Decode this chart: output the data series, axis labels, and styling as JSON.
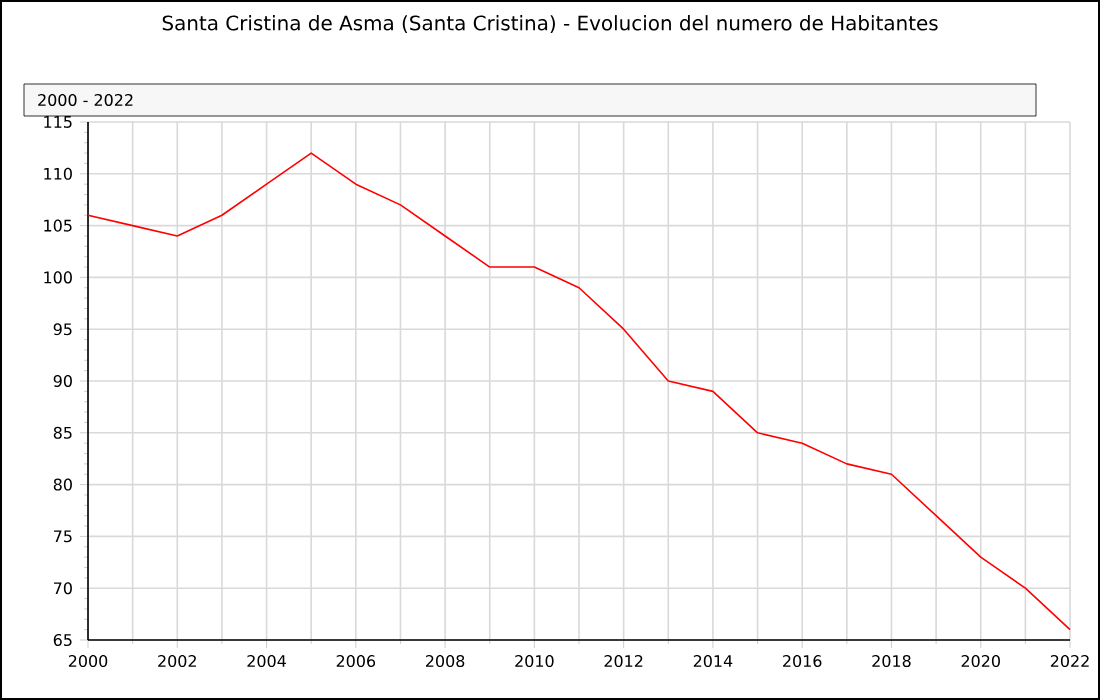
{
  "chart_data": {
    "type": "line",
    "title": "Santa Cristina de Asma (Santa Cristina) - Evolucion del numero de Habitantes",
    "subtitle": "2000 - 2022",
    "x": [
      2000,
      2001,
      2002,
      2003,
      2004,
      2005,
      2006,
      2007,
      2008,
      2009,
      2010,
      2011,
      2012,
      2013,
      2014,
      2015,
      2016,
      2017,
      2018,
      2019,
      2020,
      2021,
      2022
    ],
    "series": [
      {
        "color": "#ff0000",
        "values": [
          106,
          105,
          104,
          106,
          109,
          112,
          109,
          107,
          104,
          101,
          101,
          99,
          95,
          90,
          89,
          85,
          84,
          82,
          81,
          77,
          73,
          70,
          66
        ]
      }
    ],
    "xlim": [
      2000,
      2022
    ],
    "xticks": [
      2000,
      2002,
      2004,
      2006,
      2008,
      2010,
      2012,
      2014,
      2016,
      2018,
      2020,
      2022
    ],
    "ylim": [
      65,
      115
    ],
    "yticks": [
      65,
      70,
      75,
      80,
      85,
      90,
      95,
      100,
      105,
      110,
      115
    ],
    "grid": true,
    "marker": "none",
    "line_style": "solid"
  }
}
